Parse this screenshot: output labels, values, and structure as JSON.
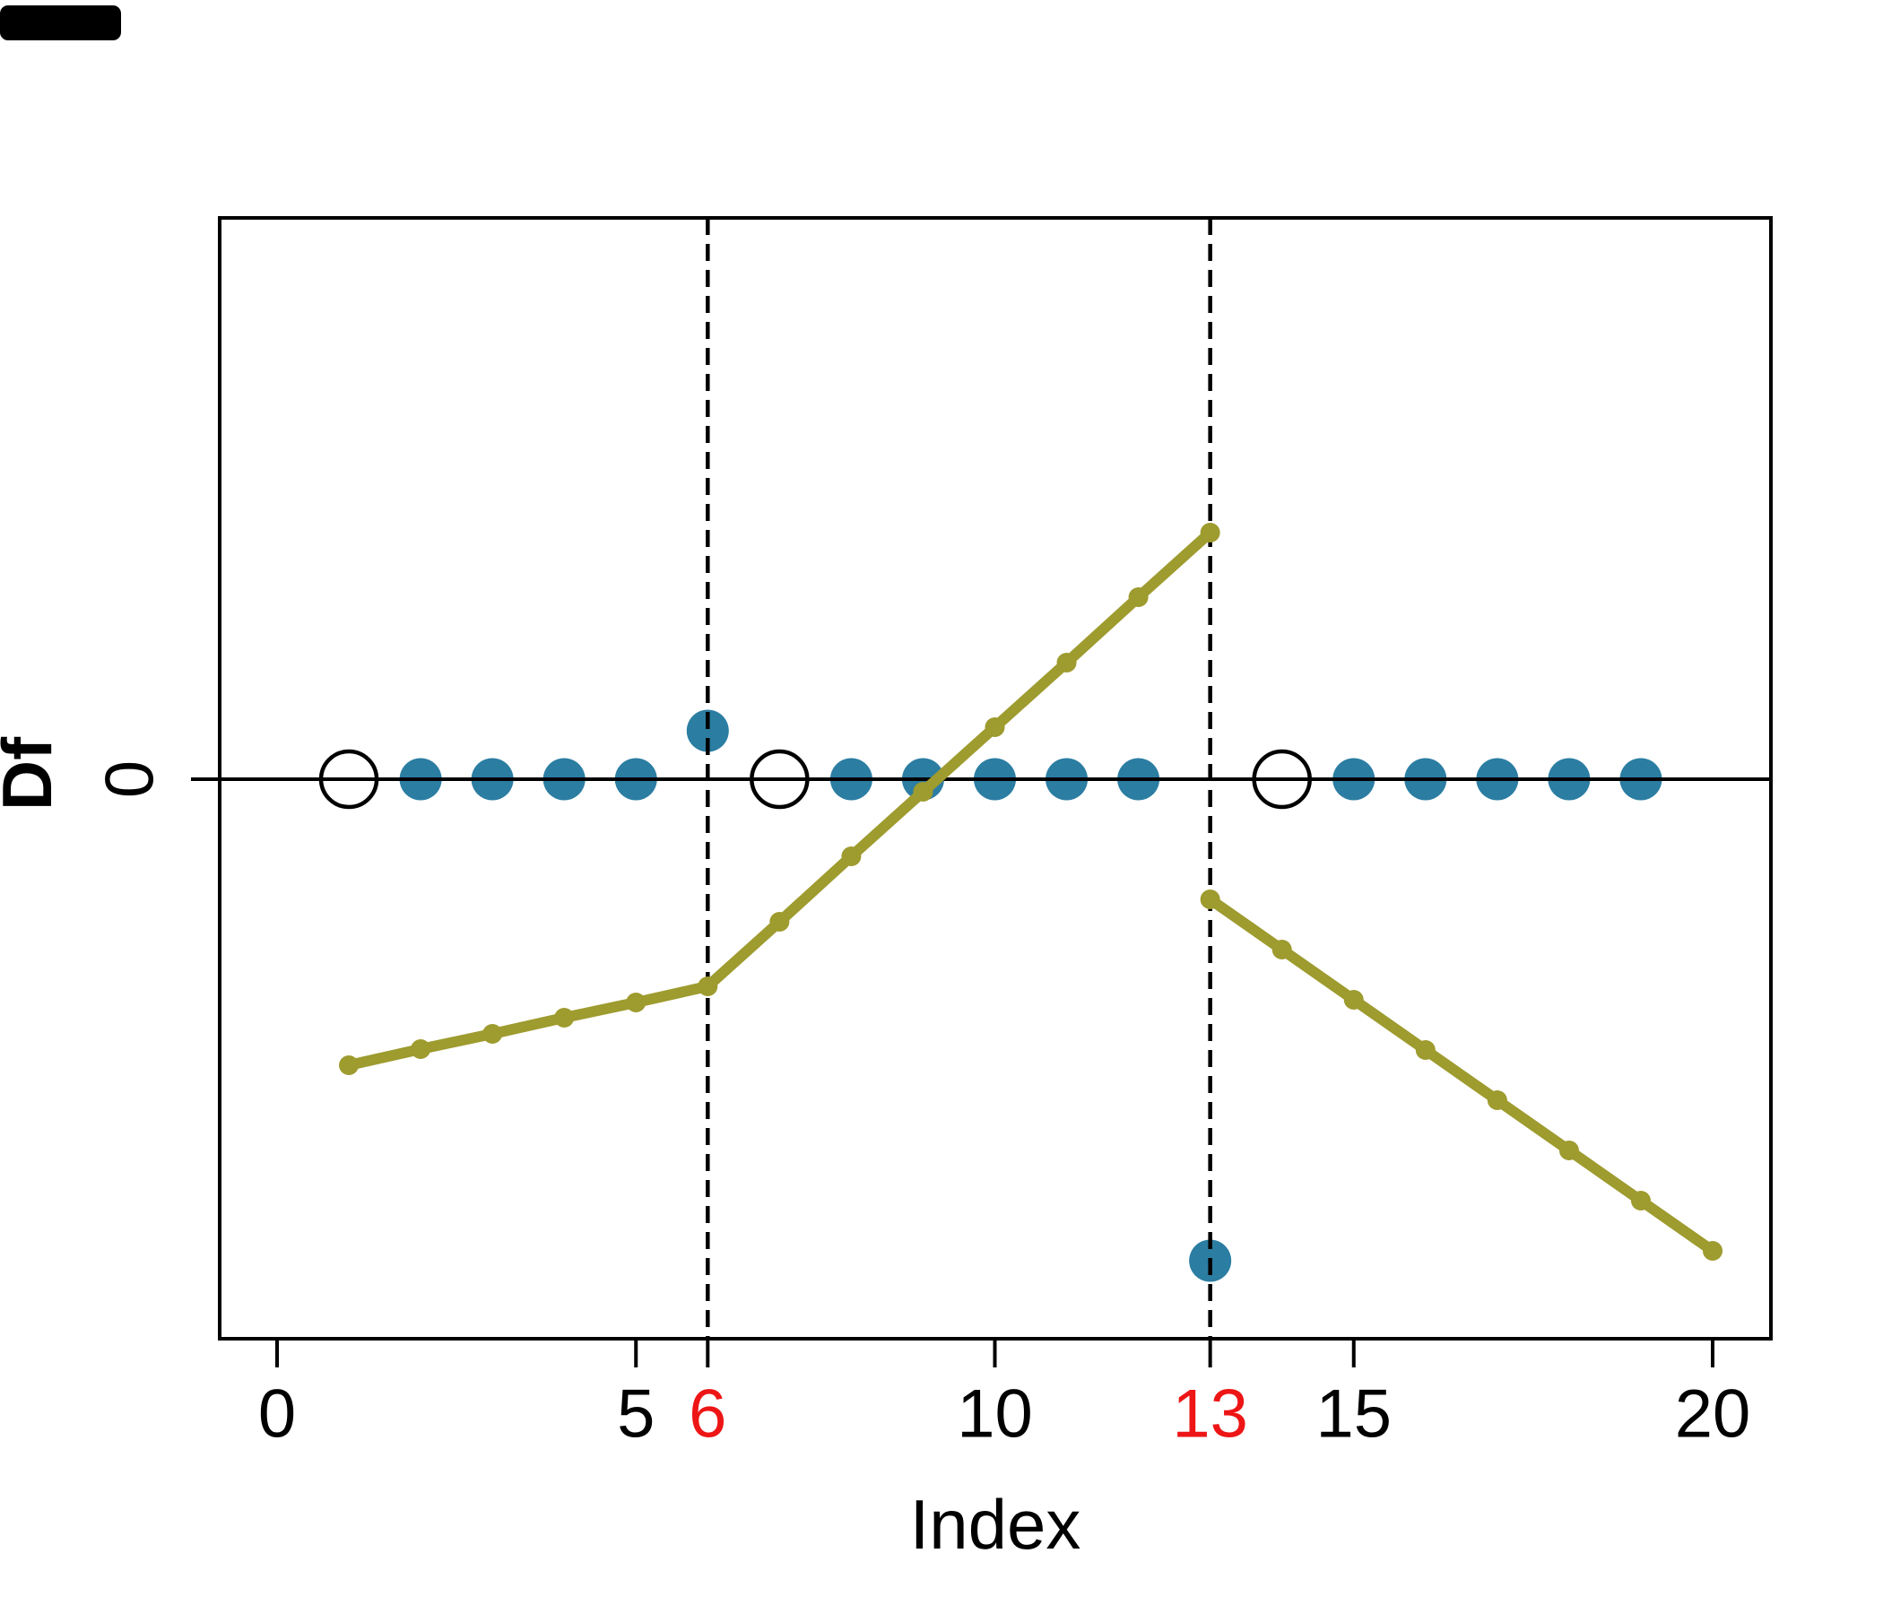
{
  "page": {
    "background": "#ffffff",
    "has_top_left_black_bar": true
  },
  "colors": {
    "olive_line": "#9e9b2f",
    "df_point_blue": "#2b7da2",
    "changepoint_red": "#ed1515",
    "axis_black": "#000000",
    "open_circle_fill": "#ffffff"
  },
  "chart_data": {
    "type": "line",
    "title": "",
    "xlabel": "Index",
    "ylabel": "Df",
    "xlim": [
      -0.8,
      20.8
    ],
    "ylim": [
      -6.25,
      6.26
    ],
    "grid": false,
    "legend": "none",
    "x_axis": {
      "label": "Index",
      "ticks": [
        {
          "value": 0,
          "label": "0",
          "color": "#000000"
        },
        {
          "value": 5,
          "label": "5",
          "color": "#000000"
        },
        {
          "value": 6,
          "label": "6",
          "color": "#ed1515"
        },
        {
          "value": 10,
          "label": "10",
          "color": "#000000"
        },
        {
          "value": 13,
          "label": "13",
          "color": "#ed1515"
        },
        {
          "value": 15,
          "label": "15",
          "color": "#000000"
        },
        {
          "value": 20,
          "label": "20",
          "color": "#000000"
        }
      ]
    },
    "y_axis": {
      "label": "Df",
      "ticks": [
        {
          "value": 0,
          "label": "0",
          "color": "#000000"
        }
      ]
    },
    "zero_line": {
      "y": 0,
      "color": "#000000"
    },
    "changepoint_vlines": [
      {
        "x": 6,
        "style": "dashed",
        "color": "#000000"
      },
      {
        "x": 13,
        "style": "dashed",
        "color": "#000000"
      }
    ],
    "series": [
      {
        "name": "olive-piecewise-segment-1",
        "type": "line-with-markers",
        "color": "#9e9b2f",
        "x": [
          1,
          2,
          3,
          4,
          5,
          6,
          7,
          8,
          9,
          10,
          11,
          12,
          13
        ],
        "y": [
          -3.19,
          -3.01,
          -2.84,
          -2.66,
          -2.49,
          -2.31,
          -1.59,
          -0.86,
          -0.14,
          0.58,
          1.3,
          2.03,
          2.75
        ]
      },
      {
        "name": "olive-piecewise-segment-2",
        "type": "line-with-markers",
        "color": "#9e9b2f",
        "x": [
          13,
          14,
          15,
          16,
          17,
          18,
          19,
          20
        ],
        "y": [
          -1.34,
          -1.9,
          -2.46,
          -3.02,
          -3.58,
          -4.14,
          -4.7,
          -5.26
        ]
      },
      {
        "name": "df-second-difference-points",
        "type": "scatter-filled",
        "color": "#2b7da2",
        "x": [
          2,
          3,
          4,
          5,
          6,
          8,
          9,
          10,
          11,
          12,
          13,
          15,
          16,
          17,
          18,
          19
        ],
        "y": [
          0,
          0,
          0,
          0,
          0.54,
          0,
          0,
          0,
          0,
          0,
          -5.37,
          0,
          0,
          0,
          0,
          0
        ]
      },
      {
        "name": "open-circle-points",
        "type": "scatter-open",
        "color": "#000000",
        "x": [
          1,
          7,
          14
        ],
        "y": [
          0,
          0,
          0
        ]
      }
    ]
  }
}
